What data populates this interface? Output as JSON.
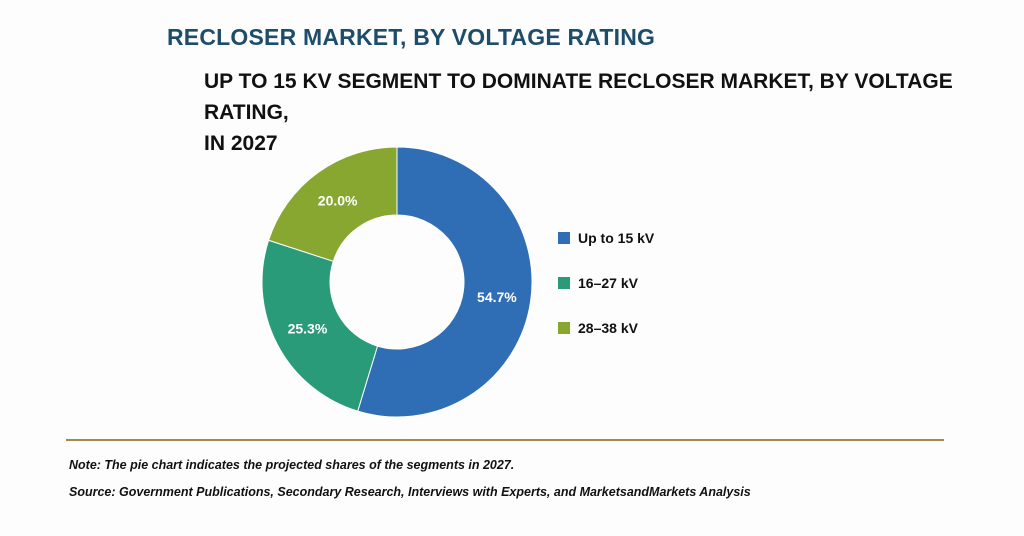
{
  "header": {
    "title": "RECLOSER MARKET, BY VOLTAGE RATING",
    "subtitle_line1": "UP TO 15 KV SEGMENT TO DOMINATE RECLOSER MARKET, BY VOLTAGE RATING,",
    "subtitle_line2": "IN 2027"
  },
  "chart_data": {
    "type": "pie",
    "donut": true,
    "title": "UP TO 15 KV SEGMENT TO DOMINATE RECLOSER MARKET, BY VOLTAGE RATING, IN 2027",
    "legend_position": "right",
    "slices": [
      {
        "label": "Up to 15 kV",
        "value": 54.7,
        "display": "54.7%",
        "color": "#2f6eb5"
      },
      {
        "label": "16–27 kV",
        "value": 25.3,
        "display": "25.3%",
        "color": "#2a9b78"
      },
      {
        "label": "28–38 kV",
        "value": 20.0,
        "display": "20.0%",
        "color": "#88a731"
      }
    ]
  },
  "footer": {
    "note": "Note: The pie chart indicates the projected shares of the segments in 2027.",
    "source": "Source: Government Publications, Secondary Research, Interviews with Experts, and MarketsandMarkets Analysis"
  },
  "colors": {
    "title": "#1e4d6b",
    "divider": "#a4894a"
  }
}
